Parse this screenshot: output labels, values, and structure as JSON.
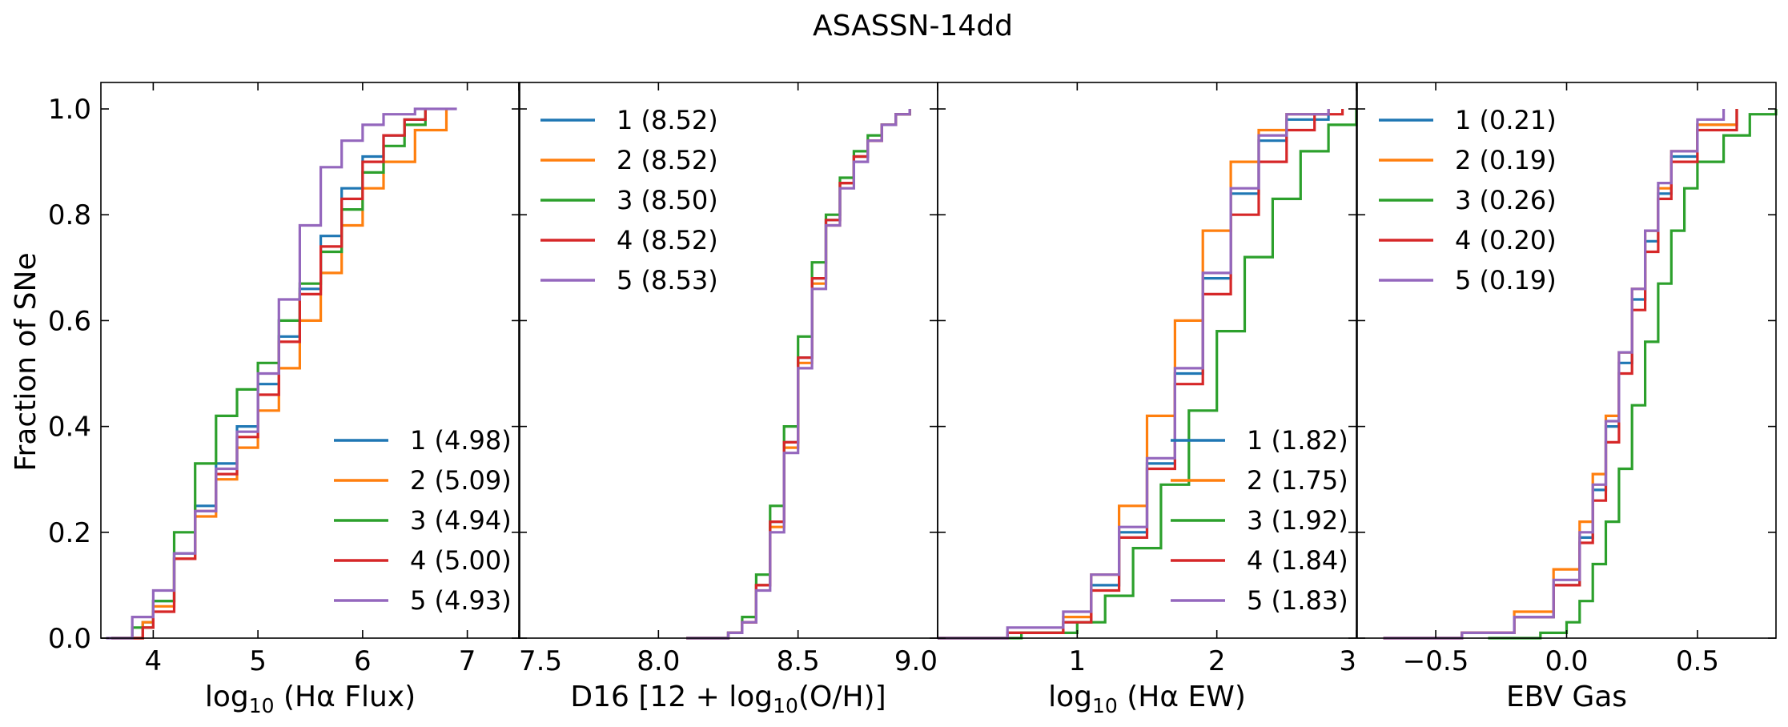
{
  "title": "ASASSN-14dd",
  "ylabel": "Fraction of SNe",
  "y_ticks": [
    "0.0",
    "0.2",
    "0.4",
    "0.6",
    "0.8",
    "1.0"
  ],
  "colors": {
    "1": "#1f77b4",
    "2": "#ff7f0e",
    "3": "#2ca02c",
    "4": "#d62728",
    "5": "#9467bd"
  },
  "chart_data": [
    {
      "type": "line",
      "subtype": "cumulative distribution (step)",
      "xlabel": {
        "pre": "log",
        "sub": "10",
        "post": " (Hα Flux)"
      },
      "xlim": [
        3.5,
        7.5
      ],
      "ylim": [
        0,
        1.05
      ],
      "x_ticks": [
        4,
        5,
        6,
        7
      ],
      "x_tick_labels": [
        "4",
        "5",
        "6",
        "7"
      ],
      "legend": "lower-right",
      "series": [
        {
          "name": "1 (4.98)",
          "color": "#1f77b4",
          "x": [
            3.6,
            3.9,
            4.0,
            4.2,
            4.4,
            4.6,
            4.8,
            5.0,
            5.2,
            5.4,
            5.6,
            5.8,
            6.0,
            6.2,
            6.4,
            6.6
          ],
          "y": [
            0.0,
            0.03,
            0.07,
            0.16,
            0.25,
            0.33,
            0.4,
            0.48,
            0.57,
            0.66,
            0.76,
            0.85,
            0.91,
            0.95,
            0.98,
            1.0
          ]
        },
        {
          "name": "2 (5.09)",
          "color": "#ff7f0e",
          "x": [
            3.6,
            3.9,
            4.0,
            4.2,
            4.4,
            4.6,
            4.8,
            5.0,
            5.2,
            5.4,
            5.6,
            5.8,
            6.0,
            6.2,
            6.5,
            6.8
          ],
          "y": [
            0.0,
            0.03,
            0.06,
            0.15,
            0.23,
            0.3,
            0.36,
            0.43,
            0.51,
            0.6,
            0.69,
            0.78,
            0.85,
            0.9,
            0.96,
            1.0
          ]
        },
        {
          "name": "3 (4.94)",
          "color": "#2ca02c",
          "x": [
            3.6,
            3.8,
            4.0,
            4.2,
            4.4,
            4.6,
            4.8,
            5.0,
            5.2,
            5.4,
            5.6,
            5.8,
            6.0,
            6.2,
            6.4,
            6.6
          ],
          "y": [
            0.0,
            0.02,
            0.07,
            0.2,
            0.33,
            0.42,
            0.47,
            0.52,
            0.6,
            0.67,
            0.73,
            0.81,
            0.88,
            0.93,
            0.97,
            1.0
          ]
        },
        {
          "name": "4 (5.00)",
          "color": "#d62728",
          "x": [
            3.6,
            3.9,
            4.0,
            4.2,
            4.4,
            4.6,
            4.8,
            5.0,
            5.2,
            5.4,
            5.6,
            5.8,
            6.0,
            6.2,
            6.4,
            6.6
          ],
          "y": [
            0.0,
            0.02,
            0.05,
            0.15,
            0.24,
            0.31,
            0.38,
            0.46,
            0.56,
            0.65,
            0.74,
            0.83,
            0.9,
            0.95,
            0.98,
            1.0
          ]
        },
        {
          "name": "5 (4.93)",
          "color": "#9467bd",
          "x": [
            3.55,
            3.8,
            4.0,
            4.2,
            4.4,
            4.6,
            4.8,
            5.0,
            5.2,
            5.4,
            5.6,
            5.8,
            6.0,
            6.2,
            6.5,
            6.9
          ],
          "y": [
            0.0,
            0.04,
            0.09,
            0.16,
            0.24,
            0.32,
            0.39,
            0.5,
            0.64,
            0.78,
            0.89,
            0.94,
            0.97,
            0.99,
            1.0,
            1.0
          ]
        }
      ]
    },
    {
      "type": "line",
      "subtype": "cumulative distribution (step)",
      "xlabel": {
        "pre": "D16 [12 + log",
        "sub": "10",
        "post": "(O/H)]"
      },
      "xlim": [
        7.5,
        9.0
      ],
      "ylim": [
        0,
        1.05
      ],
      "x_ticks": [
        7.5,
        8.0,
        8.5,
        9.0
      ],
      "x_tick_labels": [
        "7.5",
        "8.0",
        "8.5",
        "9.0"
      ],
      "legend": "upper-left",
      "series": [
        {
          "name": "1 (8.52)",
          "color": "#1f77b4",
          "x": [
            8.1,
            8.25,
            8.3,
            8.35,
            8.4,
            8.45,
            8.5,
            8.55,
            8.6,
            8.65,
            8.7,
            8.75,
            8.8,
            8.85,
            8.9
          ],
          "y": [
            0.0,
            0.01,
            0.03,
            0.1,
            0.22,
            0.37,
            0.53,
            0.68,
            0.79,
            0.86,
            0.91,
            0.94,
            0.97,
            0.99,
            1.0
          ]
        },
        {
          "name": "2 (8.52)",
          "color": "#ff7f0e",
          "x": [
            8.1,
            8.25,
            8.3,
            8.35,
            8.4,
            8.45,
            8.5,
            8.55,
            8.6,
            8.65,
            8.7,
            8.75,
            8.8,
            8.85,
            8.9
          ],
          "y": [
            0.0,
            0.01,
            0.03,
            0.1,
            0.21,
            0.36,
            0.52,
            0.67,
            0.78,
            0.86,
            0.91,
            0.94,
            0.97,
            0.99,
            1.0
          ]
        },
        {
          "name": "3 (8.50)",
          "color": "#2ca02c",
          "x": [
            8.1,
            8.25,
            8.3,
            8.35,
            8.4,
            8.45,
            8.5,
            8.55,
            8.6,
            8.65,
            8.7,
            8.75,
            8.8,
            8.85,
            8.9
          ],
          "y": [
            0.0,
            0.01,
            0.04,
            0.12,
            0.25,
            0.4,
            0.57,
            0.71,
            0.8,
            0.87,
            0.92,
            0.95,
            0.97,
            0.99,
            1.0
          ]
        },
        {
          "name": "4 (8.52)",
          "color": "#d62728",
          "x": [
            8.1,
            8.25,
            8.3,
            8.35,
            8.4,
            8.45,
            8.5,
            8.55,
            8.6,
            8.65,
            8.7,
            8.75,
            8.8,
            8.85,
            8.9
          ],
          "y": [
            0.0,
            0.01,
            0.03,
            0.1,
            0.22,
            0.37,
            0.53,
            0.68,
            0.79,
            0.86,
            0.91,
            0.94,
            0.97,
            0.99,
            1.0
          ]
        },
        {
          "name": "5 (8.53)",
          "color": "#9467bd",
          "x": [
            8.1,
            8.25,
            8.3,
            8.35,
            8.4,
            8.45,
            8.5,
            8.55,
            8.6,
            8.65,
            8.7,
            8.75,
            8.8,
            8.85,
            8.9
          ],
          "y": [
            0.0,
            0.01,
            0.03,
            0.09,
            0.2,
            0.35,
            0.51,
            0.66,
            0.78,
            0.85,
            0.9,
            0.94,
            0.97,
            0.99,
            1.0
          ]
        }
      ]
    },
    {
      "type": "line",
      "subtype": "cumulative distribution (step)",
      "xlabel": {
        "pre": "log",
        "sub": "10",
        "post": " (Hα EW)"
      },
      "xlim": [
        0.0,
        3.0
      ],
      "ylim": [
        0,
        1.05
      ],
      "x_ticks": [
        1,
        2,
        3
      ],
      "x_tick_labels": [
        "1",
        "2",
        "3"
      ],
      "legend": "lower-right",
      "series": [
        {
          "name": "1 (1.82)",
          "color": "#1f77b4",
          "x": [
            0.0,
            0.5,
            0.9,
            1.1,
            1.3,
            1.5,
            1.7,
            1.9,
            2.1,
            2.3,
            2.5,
            2.8
          ],
          "y": [
            0.0,
            0.01,
            0.03,
            0.1,
            0.2,
            0.33,
            0.5,
            0.68,
            0.84,
            0.94,
            0.98,
            1.0
          ]
        },
        {
          "name": "2 (1.75)",
          "color": "#ff7f0e",
          "x": [
            0.0,
            0.5,
            0.9,
            1.1,
            1.3,
            1.5,
            1.7,
            1.9,
            2.1,
            2.3,
            2.5,
            2.8
          ],
          "y": [
            0.0,
            0.01,
            0.04,
            0.12,
            0.25,
            0.42,
            0.6,
            0.77,
            0.9,
            0.96,
            0.99,
            1.0
          ]
        },
        {
          "name": "3 (1.92)",
          "color": "#2ca02c",
          "x": [
            0.0,
            0.6,
            1.0,
            1.2,
            1.4,
            1.6,
            1.8,
            2.0,
            2.2,
            2.4,
            2.6,
            2.8,
            3.0
          ],
          "y": [
            0.0,
            0.01,
            0.03,
            0.08,
            0.17,
            0.29,
            0.43,
            0.58,
            0.72,
            0.83,
            0.92,
            0.97,
            1.0
          ]
        },
        {
          "name": "4 (1.84)",
          "color": "#d62728",
          "x": [
            0.0,
            0.5,
            0.9,
            1.1,
            1.3,
            1.5,
            1.7,
            1.9,
            2.1,
            2.3,
            2.5,
            2.7,
            2.9
          ],
          "y": [
            0.0,
            0.01,
            0.03,
            0.09,
            0.19,
            0.32,
            0.48,
            0.65,
            0.8,
            0.9,
            0.96,
            0.99,
            1.0
          ]
        },
        {
          "name": "5 (1.83)",
          "color": "#9467bd",
          "x": [
            0.0,
            0.5,
            0.9,
            1.1,
            1.3,
            1.5,
            1.7,
            1.9,
            2.1,
            2.3,
            2.5,
            2.8
          ],
          "y": [
            0.0,
            0.02,
            0.05,
            0.12,
            0.21,
            0.34,
            0.51,
            0.69,
            0.85,
            0.95,
            0.99,
            1.0
          ]
        }
      ]
    },
    {
      "type": "line",
      "subtype": "cumulative distribution (step)",
      "xlabel": {
        "pre": "EBV Gas",
        "sub": "",
        "post": ""
      },
      "xlim": [
        -0.8,
        0.8
      ],
      "ylim": [
        0,
        1.05
      ],
      "x_ticks": [
        -0.5,
        0.0,
        0.5
      ],
      "x_tick_labels": [
        "−0.5",
        "0.0",
        "0.5"
      ],
      "legend": "upper-left",
      "series": [
        {
          "name": "1 (0.21)",
          "color": "#1f77b4",
          "x": [
            -0.7,
            -0.4,
            -0.2,
            -0.05,
            0.05,
            0.1,
            0.15,
            0.2,
            0.25,
            0.3,
            0.35,
            0.4,
            0.5,
            0.65
          ],
          "y": [
            0.0,
            0.01,
            0.04,
            0.1,
            0.19,
            0.28,
            0.4,
            0.52,
            0.64,
            0.75,
            0.84,
            0.91,
            0.97,
            1.0
          ]
        },
        {
          "name": "2 (0.19)",
          "color": "#ff7f0e",
          "x": [
            -0.7,
            -0.4,
            -0.2,
            -0.05,
            0.05,
            0.1,
            0.15,
            0.2,
            0.25,
            0.3,
            0.35,
            0.4,
            0.5,
            0.65
          ],
          "y": [
            0.0,
            0.01,
            0.05,
            0.13,
            0.22,
            0.31,
            0.42,
            0.54,
            0.66,
            0.77,
            0.85,
            0.92,
            0.97,
            1.0
          ]
        },
        {
          "name": "3 (0.26)",
          "color": "#2ca02c",
          "x": [
            -0.3,
            -0.1,
            0.0,
            0.05,
            0.1,
            0.15,
            0.2,
            0.25,
            0.3,
            0.35,
            0.4,
            0.45,
            0.5,
            0.6,
            0.7,
            0.8
          ],
          "y": [
            0.0,
            0.01,
            0.03,
            0.07,
            0.14,
            0.22,
            0.32,
            0.44,
            0.56,
            0.67,
            0.77,
            0.85,
            0.9,
            0.95,
            0.99,
            1.0
          ]
        },
        {
          "name": "4 (0.20)",
          "color": "#d62728",
          "x": [
            -0.7,
            -0.4,
            -0.2,
            -0.05,
            0.05,
            0.1,
            0.15,
            0.2,
            0.25,
            0.3,
            0.35,
            0.4,
            0.5,
            0.65
          ],
          "y": [
            0.0,
            0.01,
            0.04,
            0.1,
            0.18,
            0.26,
            0.37,
            0.5,
            0.62,
            0.73,
            0.83,
            0.9,
            0.96,
            1.0
          ]
        },
        {
          "name": "5 (0.19)",
          "color": "#9467bd",
          "x": [
            -0.7,
            -0.4,
            -0.2,
            -0.05,
            0.05,
            0.1,
            0.15,
            0.2,
            0.25,
            0.3,
            0.35,
            0.4,
            0.5,
            0.6
          ],
          "y": [
            0.0,
            0.01,
            0.04,
            0.11,
            0.2,
            0.29,
            0.41,
            0.54,
            0.66,
            0.77,
            0.86,
            0.92,
            0.98,
            1.0
          ]
        }
      ]
    }
  ]
}
